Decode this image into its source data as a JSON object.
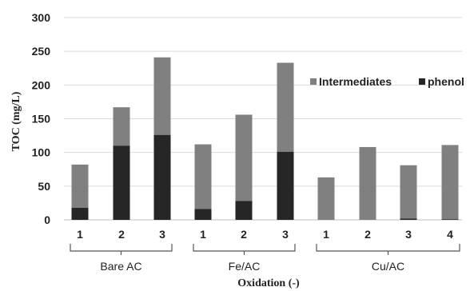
{
  "chart_data": {
    "type": "bar",
    "stacked": true,
    "ylabel": "TOC (mg/L)",
    "xlabel": "Oxidation (-)",
    "ylim": [
      0,
      300
    ],
    "yticks": [
      0,
      50,
      100,
      150,
      200,
      250,
      300
    ],
    "grid": true,
    "legend_position": "right",
    "groups": [
      {
        "name": "Bare AC",
        "bars": [
          {
            "label": "1",
            "phenol": 18,
            "total": 82
          },
          {
            "label": "2",
            "phenol": 110,
            "total": 167
          },
          {
            "label": "3",
            "phenol": 126,
            "total": 241
          }
        ]
      },
      {
        "name": "Fe/AC",
        "bars": [
          {
            "label": "1",
            "phenol": 16,
            "total": 112
          },
          {
            "label": "2",
            "phenol": 28,
            "total": 156
          },
          {
            "label": "3",
            "phenol": 101,
            "total": 233
          }
        ]
      },
      {
        "name": "Cu/AC",
        "bars": [
          {
            "label": "1",
            "phenol": 0,
            "total": 63
          },
          {
            "label": "2",
            "phenol": 0,
            "total": 108
          },
          {
            "label": "3",
            "phenol": 2,
            "total": 81
          },
          {
            "label": "4",
            "phenol": 1,
            "total": 111
          }
        ]
      }
    ],
    "series": [
      {
        "name": "Intermediates",
        "color": "#808080"
      },
      {
        "name": "phenol",
        "color": "#262626"
      }
    ]
  }
}
